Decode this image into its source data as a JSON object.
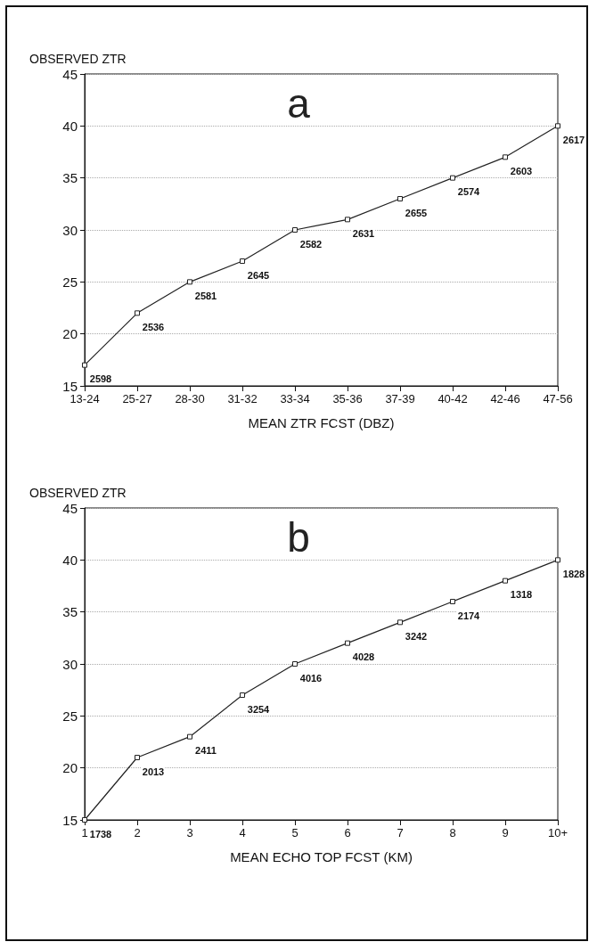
{
  "chart_data": [
    {
      "type": "line",
      "title": "a",
      "ylabel": "OBSERVED ZTR",
      "xlabel": "MEAN ZTR FCST (DBZ)",
      "categories": [
        "13-24",
        "25-27",
        "28-30",
        "31-32",
        "33-34",
        "35-36",
        "37-39",
        "40-42",
        "42-46",
        "47-56"
      ],
      "series": [
        {
          "color": "#222222",
          "values": [
            17,
            22,
            25,
            27,
            30,
            31,
            33,
            35,
            37,
            40
          ]
        }
      ],
      "annotations": [
        {
          "text": "2598",
          "x": "13-24",
          "y": 17
        },
        {
          "text": "2536",
          "x": "25-27",
          "y": 22
        },
        {
          "text": "2581",
          "x": "28-30",
          "y": 25
        },
        {
          "text": "2645",
          "x": "31-32",
          "y": 27
        },
        {
          "text": "2582",
          "x": "33-34",
          "y": 30
        },
        {
          "text": "2631",
          "x": "35-36",
          "y": 31
        },
        {
          "text": "2655",
          "x": "37-39",
          "y": 33
        },
        {
          "text": "2574",
          "x": "40-42",
          "y": 35
        },
        {
          "text": "2603",
          "x": "42-46",
          "y": 37
        },
        {
          "text": "2617",
          "x": "47-56",
          "y": 40
        }
      ],
      "ylim": [
        15,
        45
      ],
      "yticks": [
        15,
        20,
        25,
        30,
        35,
        40,
        45
      ],
      "grid": "y",
      "marker": "square",
      "line_style": "solid"
    },
    {
      "type": "line",
      "title": "b",
      "ylabel": "OBSERVED ZTR",
      "xlabel": "MEAN ECHO TOP FCST (KM)",
      "categories": [
        "1",
        "2",
        "3",
        "4",
        "5",
        "6",
        "7",
        "8",
        "9",
        "10+"
      ],
      "series": [
        {
          "color": "#222222",
          "values": [
            15,
            21,
            23,
            27,
            30,
            32,
            34,
            36,
            38,
            40
          ]
        }
      ],
      "annotations": [
        {
          "text": "1738",
          "x": "1",
          "y": 15
        },
        {
          "text": "2013",
          "x": "2",
          "y": 21
        },
        {
          "text": "2411",
          "x": "3",
          "y": 23
        },
        {
          "text": "3254",
          "x": "4",
          "y": 27
        },
        {
          "text": "4016",
          "x": "5",
          "y": 30
        },
        {
          "text": "4028",
          "x": "6",
          "y": 32
        },
        {
          "text": "3242",
          "x": "7",
          "y": 34
        },
        {
          "text": "2174",
          "x": "8",
          "y": 36
        },
        {
          "text": "1318",
          "x": "9",
          "y": 38
        },
        {
          "text": "1828",
          "x": "10+",
          "y": 40
        }
      ],
      "ylim": [
        15,
        45
      ],
      "yticks": [
        15,
        20,
        25,
        30,
        35,
        40,
        45
      ],
      "grid": "y",
      "marker": "square",
      "line_style": "solid"
    }
  ]
}
